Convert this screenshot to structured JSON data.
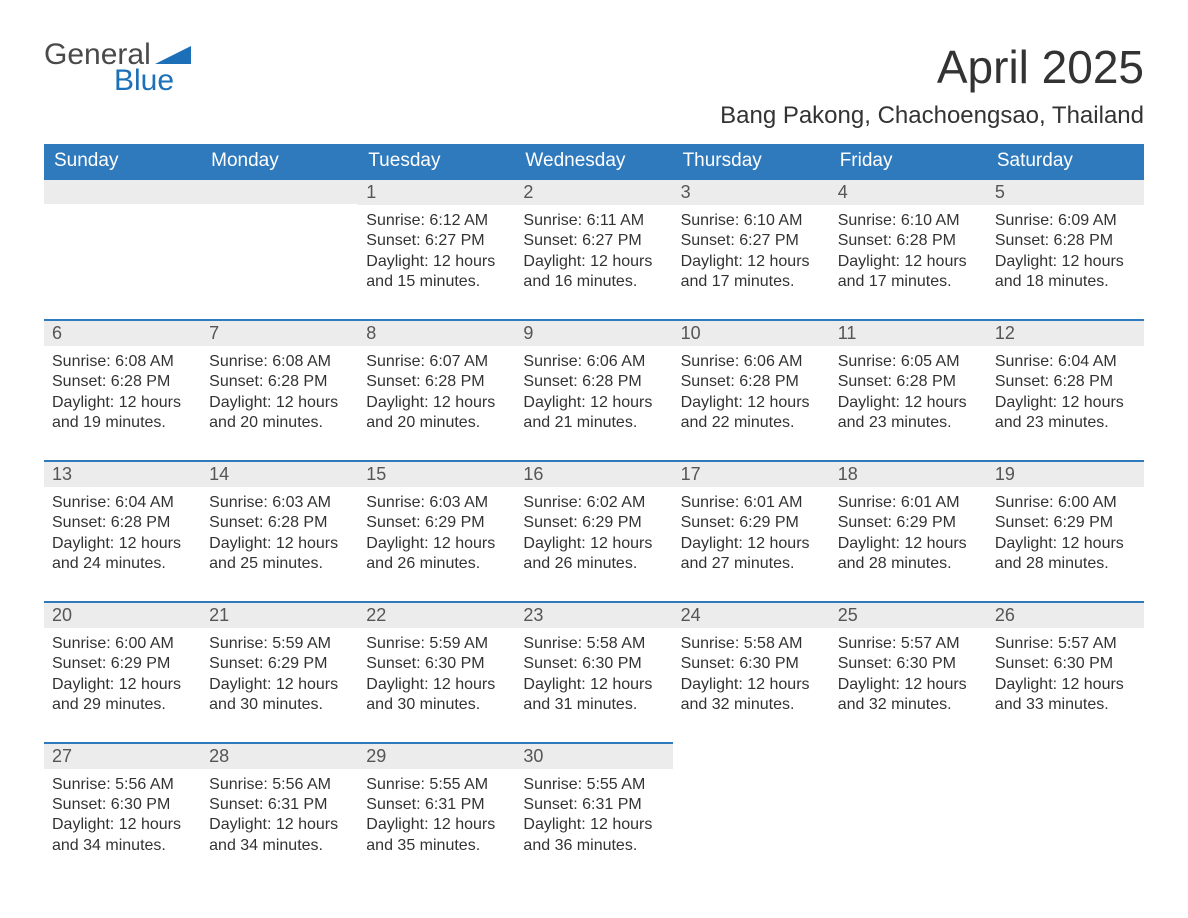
{
  "brand": {
    "name_top": "General",
    "name_sub": "Blue"
  },
  "title": "April 2025",
  "location": "Bang Pakong, Chachoengsao, Thailand",
  "colors": {
    "header_bg": "#2f79bd",
    "header_text": "#ffffff",
    "row_border": "#2f79bd",
    "daynum_bg": "#ececec",
    "text": "#333333",
    "brand_blue": "#1d6fb8"
  },
  "days_of_week": [
    "Sunday",
    "Monday",
    "Tuesday",
    "Wednesday",
    "Thursday",
    "Friday",
    "Saturday"
  ],
  "labels": {
    "sunrise": "Sunrise:",
    "sunset": "Sunset:",
    "daylight_prefix": "Daylight:",
    "daylight_hours": "12 hours"
  },
  "weeks": [
    [
      null,
      null,
      {
        "n": "1",
        "sunrise": "6:12 AM",
        "sunset": "6:27 PM",
        "mins": "15"
      },
      {
        "n": "2",
        "sunrise": "6:11 AM",
        "sunset": "6:27 PM",
        "mins": "16"
      },
      {
        "n": "3",
        "sunrise": "6:10 AM",
        "sunset": "6:27 PM",
        "mins": "17"
      },
      {
        "n": "4",
        "sunrise": "6:10 AM",
        "sunset": "6:28 PM",
        "mins": "17"
      },
      {
        "n": "5",
        "sunrise": "6:09 AM",
        "sunset": "6:28 PM",
        "mins": "18"
      }
    ],
    [
      {
        "n": "6",
        "sunrise": "6:08 AM",
        "sunset": "6:28 PM",
        "mins": "19"
      },
      {
        "n": "7",
        "sunrise": "6:08 AM",
        "sunset": "6:28 PM",
        "mins": "20"
      },
      {
        "n": "8",
        "sunrise": "6:07 AM",
        "sunset": "6:28 PM",
        "mins": "20"
      },
      {
        "n": "9",
        "sunrise": "6:06 AM",
        "sunset": "6:28 PM",
        "mins": "21"
      },
      {
        "n": "10",
        "sunrise": "6:06 AM",
        "sunset": "6:28 PM",
        "mins": "22"
      },
      {
        "n": "11",
        "sunrise": "6:05 AM",
        "sunset": "6:28 PM",
        "mins": "23"
      },
      {
        "n": "12",
        "sunrise": "6:04 AM",
        "sunset": "6:28 PM",
        "mins": "23"
      }
    ],
    [
      {
        "n": "13",
        "sunrise": "6:04 AM",
        "sunset": "6:28 PM",
        "mins": "24"
      },
      {
        "n": "14",
        "sunrise": "6:03 AM",
        "sunset": "6:28 PM",
        "mins": "25"
      },
      {
        "n": "15",
        "sunrise": "6:03 AM",
        "sunset": "6:29 PM",
        "mins": "26"
      },
      {
        "n": "16",
        "sunrise": "6:02 AM",
        "sunset": "6:29 PM",
        "mins": "26"
      },
      {
        "n": "17",
        "sunrise": "6:01 AM",
        "sunset": "6:29 PM",
        "mins": "27"
      },
      {
        "n": "18",
        "sunrise": "6:01 AM",
        "sunset": "6:29 PM",
        "mins": "28"
      },
      {
        "n": "19",
        "sunrise": "6:00 AM",
        "sunset": "6:29 PM",
        "mins": "28"
      }
    ],
    [
      {
        "n": "20",
        "sunrise": "6:00 AM",
        "sunset": "6:29 PM",
        "mins": "29"
      },
      {
        "n": "21",
        "sunrise": "5:59 AM",
        "sunset": "6:29 PM",
        "mins": "30"
      },
      {
        "n": "22",
        "sunrise": "5:59 AM",
        "sunset": "6:30 PM",
        "mins": "30"
      },
      {
        "n": "23",
        "sunrise": "5:58 AM",
        "sunset": "6:30 PM",
        "mins": "31"
      },
      {
        "n": "24",
        "sunrise": "5:58 AM",
        "sunset": "6:30 PM",
        "mins": "32"
      },
      {
        "n": "25",
        "sunrise": "5:57 AM",
        "sunset": "6:30 PM",
        "mins": "32"
      },
      {
        "n": "26",
        "sunrise": "5:57 AM",
        "sunset": "6:30 PM",
        "mins": "33"
      }
    ],
    [
      {
        "n": "27",
        "sunrise": "5:56 AM",
        "sunset": "6:30 PM",
        "mins": "34"
      },
      {
        "n": "28",
        "sunrise": "5:56 AM",
        "sunset": "6:31 PM",
        "mins": "34"
      },
      {
        "n": "29",
        "sunrise": "5:55 AM",
        "sunset": "6:31 PM",
        "mins": "35"
      },
      {
        "n": "30",
        "sunrise": "5:55 AM",
        "sunset": "6:31 PM",
        "mins": "36"
      },
      null,
      null,
      null
    ]
  ]
}
